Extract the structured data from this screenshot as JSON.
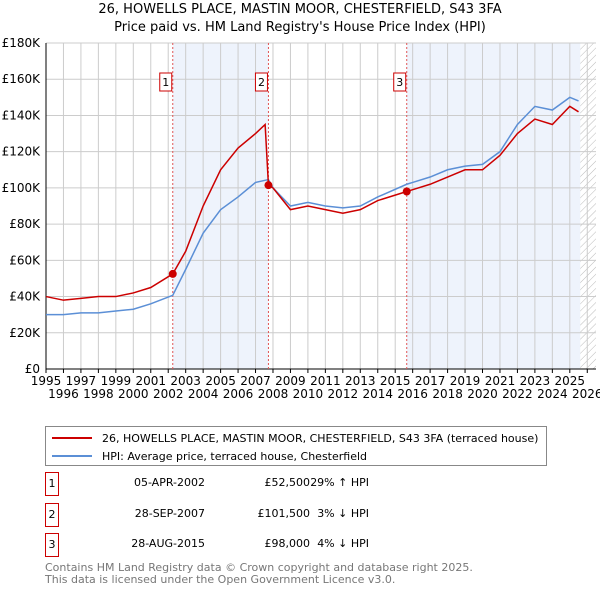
{
  "title": "26, HOWELLS PLACE, MASTIN MOOR, CHESTERFIELD, S43 3FA",
  "subtitle": "Price paid vs. HM Land Registry's House Price Index (HPI)",
  "chart_data": {
    "type": "line",
    "title": "26, HOWELLS PLACE, MASTIN MOOR, CHESTERFIELD, S43 3FA",
    "xlim": [
      1995,
      2026.5
    ],
    "ylim": [
      0,
      180000
    ],
    "x_ticks": [
      "1995",
      "1996",
      "1997",
      "1998",
      "1999",
      "2000",
      "2001",
      "2002",
      "2003",
      "2004",
      "2005",
      "2006",
      "2007",
      "2008",
      "2009",
      "2010",
      "2011",
      "2012",
      "2013",
      "2014",
      "2015",
      "2016",
      "2017",
      "2018",
      "2019",
      "2020",
      "2021",
      "2022",
      "2023",
      "2024",
      "2025",
      "2026"
    ],
    "y_ticks": [
      {
        "v": 0,
        "label": "£0"
      },
      {
        "v": 20000,
        "label": "£20K"
      },
      {
        "v": 40000,
        "label": "£40K"
      },
      {
        "v": 60000,
        "label": "£60K"
      },
      {
        "v": 80000,
        "label": "£80K"
      },
      {
        "v": 100000,
        "label": "£100K"
      },
      {
        "v": 120000,
        "label": "£120K"
      },
      {
        "v": 140000,
        "label": "£140K"
      },
      {
        "v": 160000,
        "label": "£160K"
      },
      {
        "v": 180000,
        "label": "£180K"
      }
    ],
    "grid": true,
    "series": [
      {
        "name": "26, HOWELLS PLACE, MASTIN MOOR, CHESTERFIELD, S43 3FA (terraced house)",
        "color": "#cc0000",
        "x": [
          1995,
          1996,
          1997,
          1998,
          1999,
          2000,
          2001,
          2002.26,
          2003,
          2004,
          2005,
          2006,
          2007,
          2007.55,
          2007.74,
          2008,
          2009,
          2010,
          2011,
          2012,
          2013,
          2014,
          2015.66,
          2016,
          2017,
          2018,
          2019,
          2020,
          2021,
          2022,
          2023,
          2024,
          2025,
          2025.5
        ],
        "y": [
          40000,
          38000,
          39000,
          40000,
          40000,
          42000,
          45000,
          52500,
          65000,
          90000,
          110000,
          122000,
          130000,
          135000,
          101500,
          100000,
          88000,
          90000,
          88000,
          86000,
          88000,
          93000,
          98000,
          99000,
          102000,
          106000,
          110000,
          110000,
          118000,
          130000,
          138000,
          135000,
          145000,
          142000
        ]
      },
      {
        "name": "HPI: Average price, terraced house, Chesterfield",
        "color": "#5b8fd6",
        "x": [
          1995,
          1996,
          1997,
          1998,
          1999,
          2000,
          2001,
          2002.26,
          2003,
          2004,
          2005,
          2006,
          2007,
          2007.74,
          2008,
          2009,
          2010,
          2011,
          2012,
          2013,
          2014,
          2015.66,
          2016,
          2017,
          2018,
          2019,
          2020,
          2021,
          2022,
          2023,
          2024,
          2025,
          2025.5
        ],
        "y": [
          30000,
          30000,
          31000,
          31000,
          32000,
          33000,
          36000,
          40700,
          55000,
          75000,
          88000,
          95000,
          103000,
          104600,
          100000,
          90000,
          92000,
          90000,
          89000,
          90000,
          95000,
          102000,
          103000,
          106000,
          110000,
          112000,
          113000,
          120000,
          135000,
          145000,
          143000,
          150000,
          148000
        ]
      }
    ],
    "sales": [
      {
        "label": "1",
        "x": 2002.26,
        "y": 52500
      },
      {
        "label": "2",
        "x": 2007.74,
        "y": 101500
      },
      {
        "label": "3",
        "x": 2015.66,
        "y": 98000
      }
    ],
    "forecast_start": 2025.6,
    "legend_position": "bottom"
  },
  "legend": {
    "property": "26, HOWELLS PLACE, MASTIN MOOR, CHESTERFIELD, S43 3FA (terraced house)",
    "hpi": "HPI: Average price, terraced house, Chesterfield"
  },
  "transactions": [
    {
      "num": "1",
      "date": "05-APR-2002",
      "price": "£52,500",
      "hpi": "29% ↑ HPI"
    },
    {
      "num": "2",
      "date": "28-SEP-2007",
      "price": "£101,500",
      "hpi": "3% ↓ HPI"
    },
    {
      "num": "3",
      "date": "28-AUG-2015",
      "price": "£98,000",
      "hpi": "4% ↓ HPI"
    }
  ],
  "footer": [
    "Contains HM Land Registry data © Crown copyright and database right 2025.",
    "This data is licensed under the Open Government Licence v3.0."
  ]
}
